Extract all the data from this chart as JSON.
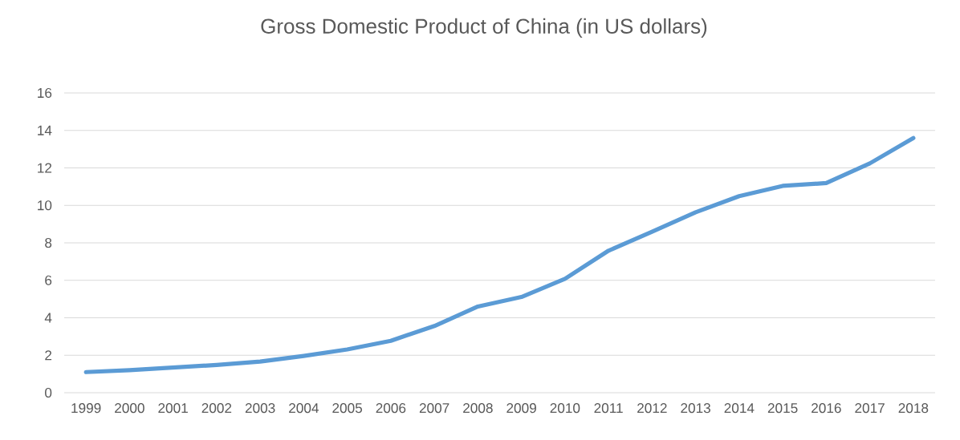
{
  "chart_data": {
    "type": "line",
    "title": "Gross Domestic Product of China (in US dollars)",
    "categories": [
      "1999",
      "2000",
      "2001",
      "2002",
      "2003",
      "2004",
      "2005",
      "2006",
      "2007",
      "2008",
      "2009",
      "2010",
      "2011",
      "2012",
      "2013",
      "2014",
      "2015",
      "2016",
      "2017",
      "2018"
    ],
    "values": [
      1.1,
      1.2,
      1.34,
      1.48,
      1.66,
      1.96,
      2.31,
      2.77,
      3.56,
      4.6,
      5.11,
      6.08,
      7.58,
      8.59,
      9.63,
      10.49,
      11.04,
      11.19,
      12.24,
      13.59
    ],
    "color": "#5b9bd5",
    "ylim": [
      0,
      16
    ],
    "yticks": [
      0,
      2,
      4,
      6,
      8,
      10,
      12,
      14,
      16
    ],
    "grid": "y",
    "marker": "none",
    "line_style": "solid"
  }
}
